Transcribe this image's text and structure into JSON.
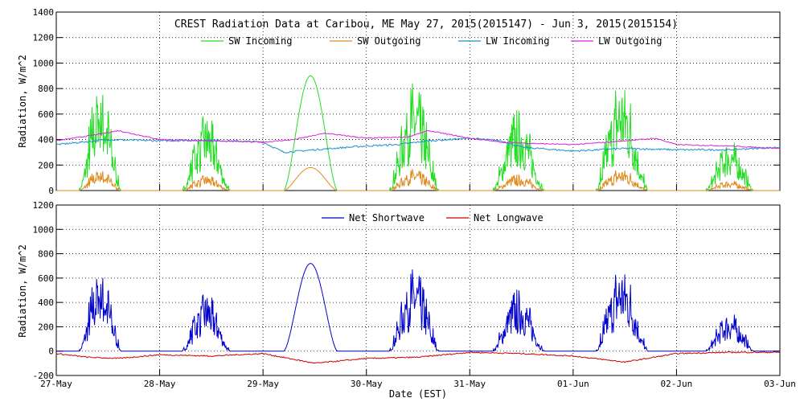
{
  "chart_data": [
    {
      "type": "line",
      "title": "CREST Radiation Data at Caribou, ME   May 27, 2015(2015147) - Jun  3, 2015(2015154)",
      "xlabel": "",
      "ylabel": "Radiation, W/m^2",
      "xlim": [
        0,
        7
      ],
      "ylim": [
        0,
        1400
      ],
      "yticks": [
        0,
        200,
        400,
        600,
        800,
        1000,
        1200,
        1400
      ],
      "xticks": [
        "27-May",
        "28-May",
        "29-May",
        "30-May",
        "31-May",
        "01-Jun",
        "02-Jun",
        "03-Jun"
      ],
      "grid": true,
      "legend": "top-center",
      "series": [
        {
          "name": "SW Incoming",
          "color": "#22dd22",
          "style": "sw",
          "days": [
            {
              "rise": 0.22,
              "set": 0.63,
              "peak": 850,
              "noisy": true
            },
            {
              "rise": 0.22,
              "set": 0.68,
              "peak": 600,
              "noisy": true
            },
            {
              "rise": 0.2,
              "set": 0.72,
              "peak": 900,
              "noisy": false
            },
            {
              "rise": 0.22,
              "set": 0.7,
              "peak": 850,
              "noisy": true
            },
            {
              "rise": 0.22,
              "set": 0.72,
              "peak": 640,
              "noisy": true
            },
            {
              "rise": 0.22,
              "set": 0.72,
              "peak": 880,
              "noisy": true
            },
            {
              "rise": 0.28,
              "set": 0.75,
              "peak": 400,
              "noisy": true
            }
          ]
        },
        {
          "name": "SW Outgoing",
          "color": "#e08a1e",
          "style": "swout",
          "albedo": 0.2
        },
        {
          "name": "LW Incoming",
          "color": "#1e90d0",
          "style": "lw",
          "points": [
            [
              0,
              360
            ],
            [
              0.5,
              400
            ],
            [
              1,
              390
            ],
            [
              1.5,
              395
            ],
            [
              2,
              380
            ],
            [
              2.2,
              300
            ],
            [
              2.5,
              320
            ],
            [
              3,
              350
            ],
            [
              3.3,
              360
            ],
            [
              3.6,
              390
            ],
            [
              4,
              410
            ],
            [
              4.3,
              390
            ],
            [
              4.5,
              340
            ],
            [
              5,
              310
            ],
            [
              5.5,
              330
            ],
            [
              6,
              320
            ],
            [
              6.5,
              320
            ],
            [
              7,
              340
            ]
          ]
        },
        {
          "name": "LW Outgoing",
          "color": "#dd22dd",
          "style": "lwo",
          "points": [
            [
              0,
              390
            ],
            [
              0.4,
              440
            ],
            [
              0.6,
              470
            ],
            [
              1,
              400
            ],
            [
              1.5,
              390
            ],
            [
              2,
              380
            ],
            [
              2.3,
              400
            ],
            [
              2.6,
              450
            ],
            [
              3,
              410
            ],
            [
              3.4,
              420
            ],
            [
              3.6,
              470
            ],
            [
              4,
              410
            ],
            [
              4.3,
              380
            ],
            [
              4.6,
              370
            ],
            [
              5,
              360
            ],
            [
              5.5,
              390
            ],
            [
              5.8,
              410
            ],
            [
              6,
              360
            ],
            [
              6.5,
              350
            ],
            [
              7,
              330
            ]
          ]
        }
      ]
    },
    {
      "type": "line",
      "title": "",
      "xlabel": "Date (EST)",
      "ylabel": "Radiation, W/m^2",
      "xlim": [
        0,
        7
      ],
      "ylim": [
        -200,
        1200
      ],
      "yticks": [
        -200,
        0,
        200,
        400,
        600,
        800,
        1000,
        1200
      ],
      "xticks": [
        "27-May",
        "28-May",
        "29-May",
        "30-May",
        "31-May",
        "01-Jun",
        "02-Jun",
        "03-Jun"
      ],
      "grid": true,
      "legend": "top-center",
      "series": [
        {
          "name": "Net Shortwave",
          "color": "#0000cc",
          "style": "netsw",
          "factor": 0.8
        },
        {
          "name": "Net Longwave",
          "color": "#cc0000",
          "style": "netlw",
          "points": [
            [
              0,
              -20
            ],
            [
              0.3,
              -50
            ],
            [
              0.6,
              -60
            ],
            [
              1,
              -30
            ],
            [
              1.5,
              -40
            ],
            [
              2,
              -20
            ],
            [
              2.5,
              -100
            ],
            [
              3,
              -60
            ],
            [
              3.5,
              -50
            ],
            [
              4,
              -10
            ],
            [
              4.5,
              -20
            ],
            [
              5,
              -40
            ],
            [
              5.5,
              -90
            ],
            [
              6,
              -20
            ],
            [
              6.5,
              -10
            ],
            [
              7,
              -10
            ]
          ]
        }
      ]
    }
  ]
}
